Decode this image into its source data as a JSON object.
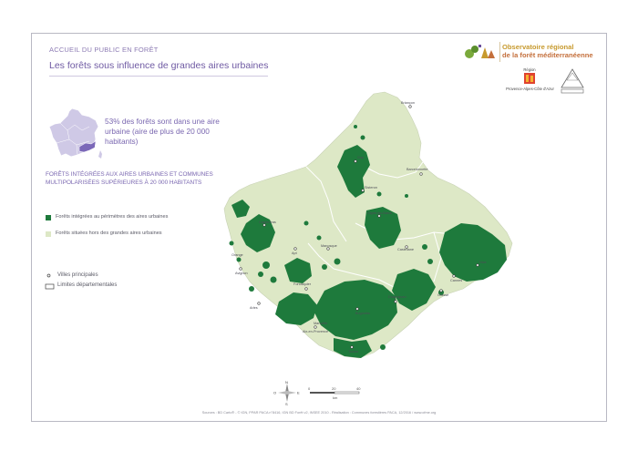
{
  "header": {
    "kicker": "ACCUEIL DU PUBLIC EN FORÊT",
    "title": "Les forêts sous influence de grandes aires urbaines"
  },
  "stat_text": "53% des forêts sont dans une aire urbaine (aire de plus de 20 000 habitants)",
  "legend": {
    "heading": "FORÊTS INTÉGRÉES AUX AIRES URBAINES ET COMMUNES MULTIPOLARISÉES SUPÉRIEURES À 20 000 HABITANTS",
    "items": [
      {
        "label": "Forêts intégrées au périmètres des aires urbaines",
        "color": "#1e7a3c"
      },
      {
        "label": "Forêts situées hors des grandes aires urbaines",
        "color": "#dde8c6"
      }
    ],
    "villes_label": "Villes principales",
    "limites_label": "Limites départementales"
  },
  "logo": {
    "line1": "Observatoire régional",
    "line2": "de la forêt méditerranéenne",
    "region_label": "Région",
    "region_name": "Provence-Alpes-Côte d'Azur",
    "brand_colors": [
      "#c79a2e",
      "#c46f3b",
      "#5b8f2d"
    ]
  },
  "cities": [
    "Briançon",
    "Gap",
    "Barcelonnette",
    "Digne-les-Bains",
    "Castellane",
    "Manosque",
    "Carpentras",
    "Avignon",
    "Apt",
    "Forcalquier",
    "Draguignan",
    "Brignoles",
    "Aix-en-Provence",
    "Arles",
    "Marseille",
    "Toulon",
    "Grasse",
    "Nice",
    "Cannes",
    "Sisteron",
    "Orange"
  ],
  "scale": {
    "ticks": [
      "0",
      "20",
      "40"
    ],
    "unit": "km"
  },
  "compass": {
    "n": "N",
    "s": "S",
    "e": "E",
    "o": "O"
  },
  "sources": "Sources : BD Carto® - © IGN, PPAR PACA n°8416, IGN BD Forêt v2, INSEE 2010 - Réalisation : Communes forestières PACA, 12/2016 / www.ofme.org"
}
